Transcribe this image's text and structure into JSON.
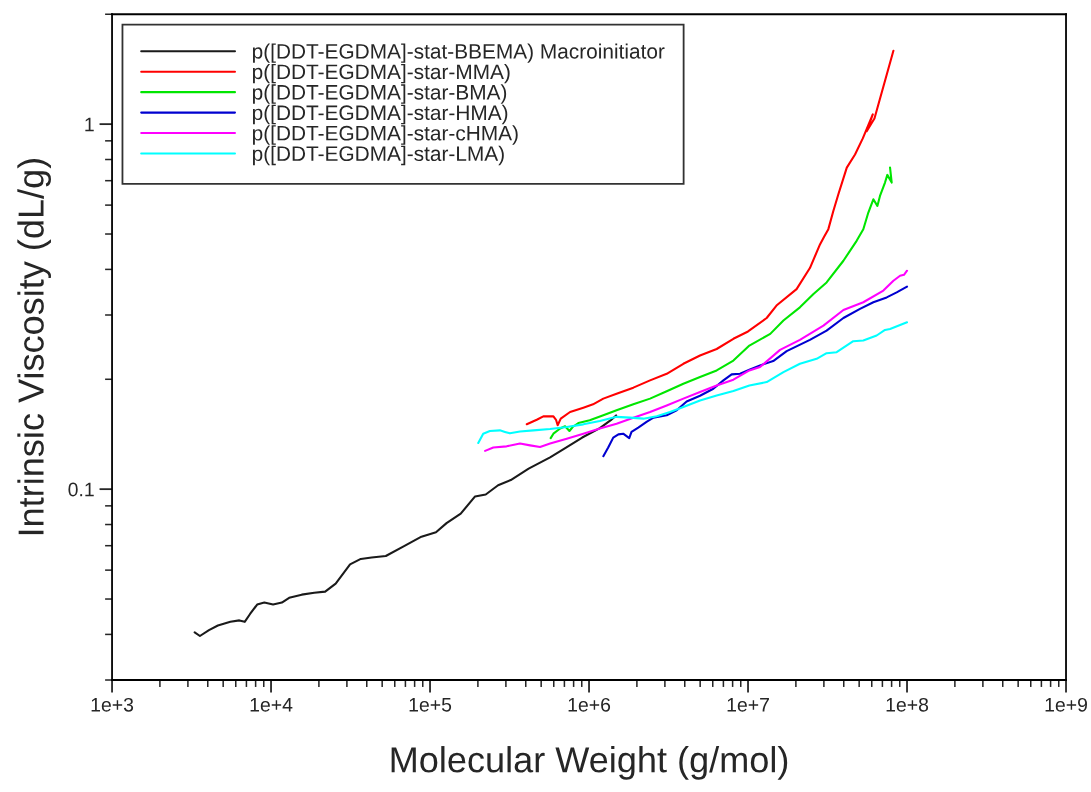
{
  "chart_data": {
    "type": "line",
    "xlabel": "Molecular Weight (g/mol)",
    "ylabel": "Intrinsic Viscosity (dL/g)",
    "log": "xy",
    "xlim": [
      1000,
      1000000000
    ],
    "ylim": [
      0.03,
      2
    ],
    "xticks": [
      {
        "value": 1000,
        "label": "1e+3"
      },
      {
        "value": 10000,
        "label": "1e+4"
      },
      {
        "value": 100000,
        "label": "1e+5"
      },
      {
        "value": 1000000,
        "label": "1e+6"
      },
      {
        "value": 10000000,
        "label": "1e+7"
      },
      {
        "value": 100000000,
        "label": "1e+8"
      },
      {
        "value": 1000000000,
        "label": "1e+9"
      }
    ],
    "yticks": [
      0.1,
      1
    ],
    "grid": false,
    "legend": "top left",
    "marker": "none",
    "line_style": "solid",
    "series": [
      {
        "name": "p([DDT-EGDMA]-stat-BBEMA) Macroinitiator",
        "color": "#1a1a1a",
        "x": [
          3310,
          3570,
          4070,
          4630,
          5550,
          6320,
          6830,
          7380,
          8180,
          9070,
          10300,
          11700,
          13000,
          15600,
          18700,
          21900,
          25500,
          31400,
          36700,
          42900,
          52700,
          68200,
          88300,
          109000,
          127000,
          156000,
          192000,
          224000,
          268000,
          322000,
          417000,
          569000,
          700000,
          906000,
          1170000,
          1370000,
          1480000
        ],
        "values": [
          0.0405,
          0.0396,
          0.0411,
          0.0423,
          0.0433,
          0.0437,
          0.0433,
          0.0455,
          0.0483,
          0.0489,
          0.0483,
          0.0489,
          0.0504,
          0.0514,
          0.052,
          0.0524,
          0.0551,
          0.0622,
          0.0644,
          0.065,
          0.0656,
          0.0697,
          0.0741,
          0.0762,
          0.0807,
          0.0857,
          0.0955,
          0.0967,
          0.1025,
          0.1059,
          0.1138,
          0.1222,
          0.1291,
          0.1385,
          0.1469,
          0.1545,
          0.1592
        ]
      },
      {
        "name": "p([DDT-EGDMA]-star-MMA)",
        "color": "#ff0000",
        "x": [
          406000,
          469000,
          516000,
          597000,
          620000,
          635000,
          664000,
          760000,
          921000,
          1060000,
          1230000,
          1490000,
          1900000,
          2420000,
          3080000,
          3920000,
          4990000,
          6350000,
          8090000,
          10000000,
          13100000,
          15100000,
          20200000,
          24500000,
          28400000,
          30100000,
          32000000,
          34400000,
          37000000,
          41800000,
          47100000,
          52700000,
          60900000,
          55800000,
          62400000,
          82100000
        ],
        "values": [
          0.1506,
          0.1549,
          0.1583,
          0.1583,
          0.1549,
          0.1496,
          0.156,
          0.1627,
          0.1672,
          0.1708,
          0.177,
          0.1825,
          0.1897,
          0.1986,
          0.207,
          0.2205,
          0.2323,
          0.2421,
          0.2582,
          0.2704,
          0.2944,
          0.3184,
          0.3533,
          0.4034,
          0.469,
          0.4911,
          0.5156,
          0.5781,
          0.6427,
          0.7603,
          0.826,
          0.914,
          1.063,
          0.957,
          1.036,
          1.589
        ]
      },
      {
        "name": "p([DDT-EGDMA]-star-BMA)",
        "color": "#00e600",
        "x": [
          574000,
          597000,
          658000,
          707000,
          753000,
          789000,
          857000,
          1010000,
          1230000,
          1490000,
          1900000,
          2420000,
          3080000,
          3920000,
          4990000,
          6350000,
          8090000,
          10200000,
          13800000,
          16700000,
          21200000,
          25800000,
          31200000,
          39800000,
          48200000,
          53100000,
          57100000,
          61400000,
          65100000,
          67600000,
          72700000,
          75200000,
          80100000,
          78200000
        ],
        "values": [
          0.138,
          0.1419,
          0.1466,
          0.1487,
          0.1443,
          0.148,
          0.1518,
          0.1545,
          0.1594,
          0.1644,
          0.1708,
          0.177,
          0.1854,
          0.1945,
          0.2028,
          0.2115,
          0.225,
          0.2474,
          0.2663,
          0.2897,
          0.3148,
          0.3425,
          0.3684,
          0.4224,
          0.479,
          0.5155,
          0.5725,
          0.6225,
          0.597,
          0.6359,
          0.6918,
          0.7261,
          0.6918,
          0.76
        ]
      },
      {
        "name": "p([DDT-EGDMA]-star-HMA)",
        "color": "#0000d0",
        "x": [
          1230000,
          1320000,
          1420000,
          1530000,
          1640000,
          1730000,
          1790000,
          1850000,
          2040000,
          2300000,
          2540000,
          3080000,
          3560000,
          4110000,
          4990000,
          6050000,
          7000000,
          7890000,
          8910000,
          10200000,
          11900000,
          14400000,
          17500000,
          24500000,
          31200000,
          39800000,
          50600000,
          61400000,
          74500000,
          86100000,
          100000000
        ],
        "values": [
          0.1231,
          0.13,
          0.1384,
          0.1413,
          0.1419,
          0.1395,
          0.138,
          0.1435,
          0.1474,
          0.1528,
          0.157,
          0.1594,
          0.1644,
          0.1739,
          0.1803,
          0.1884,
          0.1986,
          0.2063,
          0.207,
          0.2123,
          0.2183,
          0.2243,
          0.2388,
          0.2564,
          0.2718,
          0.2944,
          0.3117,
          0.3251,
          0.3352,
          0.3459,
          0.3587
        ]
      },
      {
        "name": "p([DDT-EGDMA]-star-cHMA)",
        "color": "#ff00ff",
        "x": [
          222000,
          250000,
          303000,
          368000,
          426000,
          492000,
          569000,
          724000,
          921000,
          1170000,
          1490000,
          1900000,
          2420000,
          3080000,
          3920000,
          4990000,
          6350000,
          8090000,
          10200000,
          11900000,
          15900000,
          21200000,
          29800000,
          39800000,
          53100000,
          71000000,
          82100000,
          90400000,
          95700000,
          100000000
        ],
        "values": [
          0.1273,
          0.13,
          0.131,
          0.1333,
          0.1318,
          0.1305,
          0.1333,
          0.1375,
          0.1419,
          0.1466,
          0.1511,
          0.157,
          0.1627,
          0.1696,
          0.177,
          0.1845,
          0.1924,
          0.1995,
          0.2115,
          0.216,
          0.2408,
          0.2564,
          0.2805,
          0.3095,
          0.3251,
          0.3499,
          0.3724,
          0.3843,
          0.3865,
          0.3966
        ]
      },
      {
        "name": "p([DDT-EGDMA]-star-LMA)",
        "color": "#00ffff",
        "x": [
          201000,
          216000,
          238000,
          275000,
          296000,
          318000,
          368000,
          447000,
          569000,
          724000,
          921000,
          1170000,
          1490000,
          1810000,
          2200000,
          2670000,
          3230000,
          3920000,
          4990000,
          6350000,
          8090000,
          10200000,
          13100000,
          16700000,
          21200000,
          27000000,
          31200000,
          36100000,
          45900000,
          53100000,
          64400000,
          72700000,
          78200000,
          100000000
        ],
        "values": [
          0.1338,
          0.1419,
          0.1443,
          0.1449,
          0.1435,
          0.1422,
          0.1438,
          0.1449,
          0.1461,
          0.148,
          0.1505,
          0.1538,
          0.1578,
          0.157,
          0.156,
          0.1583,
          0.1627,
          0.1679,
          0.175,
          0.1806,
          0.1858,
          0.1924,
          0.1965,
          0.2093,
          0.2205,
          0.2275,
          0.2358,
          0.2372,
          0.2543,
          0.2553,
          0.2636,
          0.273,
          0.2748,
          0.2865
        ]
      }
    ]
  }
}
